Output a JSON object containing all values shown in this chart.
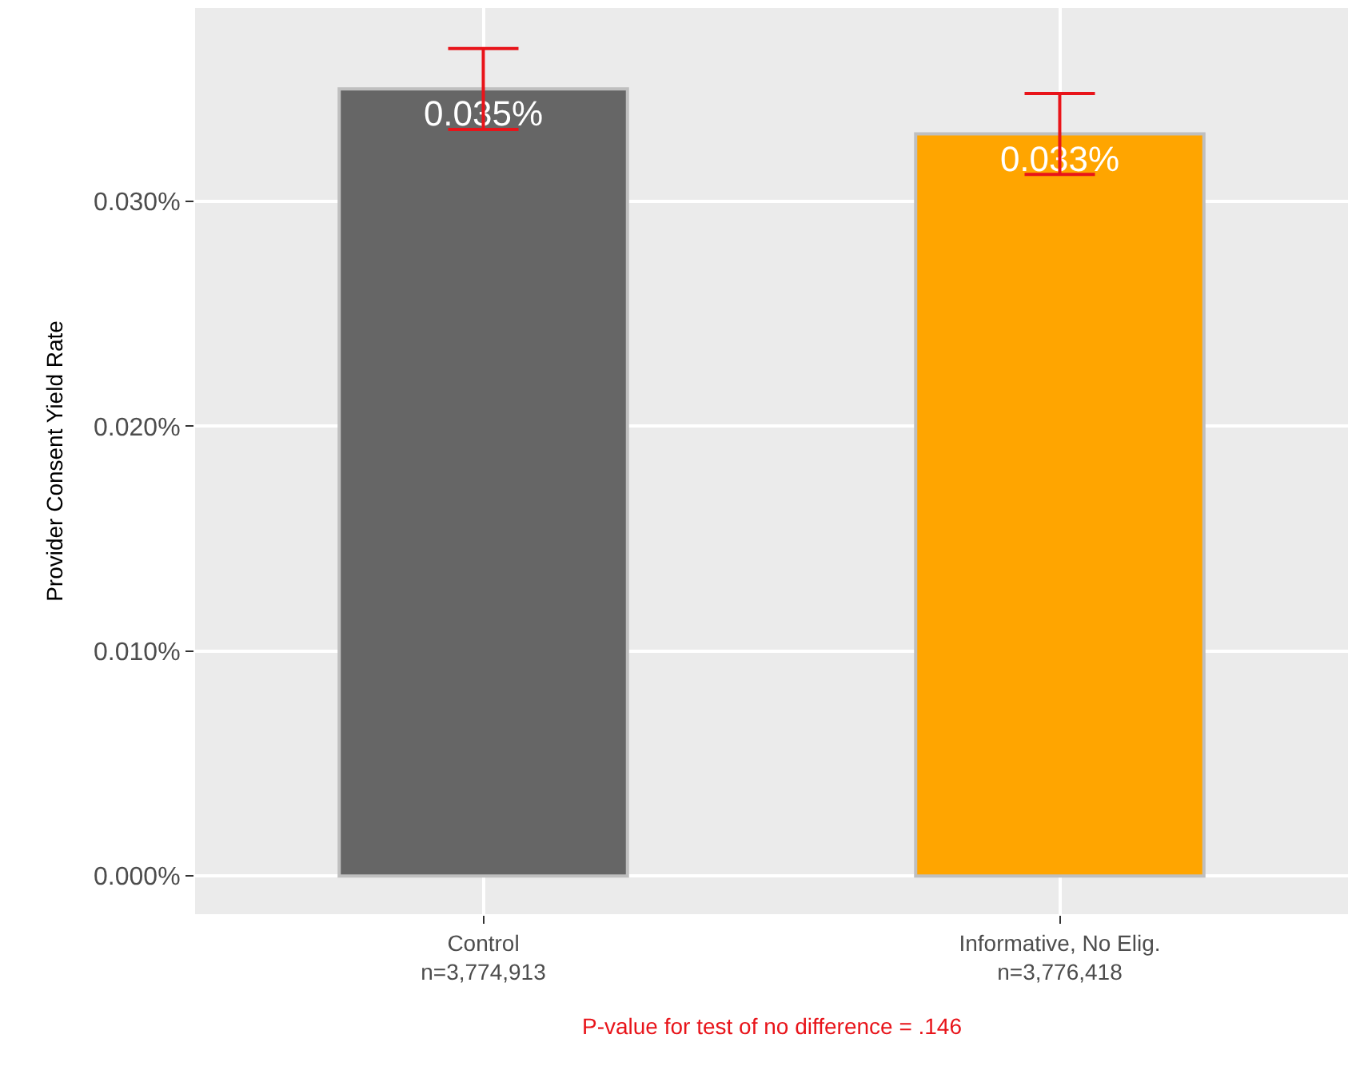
{
  "chart_data": {
    "type": "bar",
    "ylabel": "Provider Consent Yield Rate",
    "categories": [
      "Control\nn=3,774,913",
      "Informative, No Elig.\nn=3,776,418"
    ],
    "values": [
      0.035,
      0.033
    ],
    "colors": [
      "#666666",
      "#ffa500"
    ],
    "errors": [
      0.0018,
      0.0018
    ],
    "value_labels": [
      "0.035%",
      "0.033%"
    ],
    "ylim": [
      -0.0017,
      0.0386
    ],
    "yticks": [
      {
        "value": 0,
        "label": "0.000%"
      },
      {
        "value": 0.01,
        "label": "0.010%"
      },
      {
        "value": 0.02,
        "label": "0.020%"
      },
      {
        "value": 0.03,
        "label": "0.030%"
      }
    ],
    "grid": true,
    "legend": false,
    "annotations": [
      "P-value for test of no difference = .146"
    ]
  }
}
